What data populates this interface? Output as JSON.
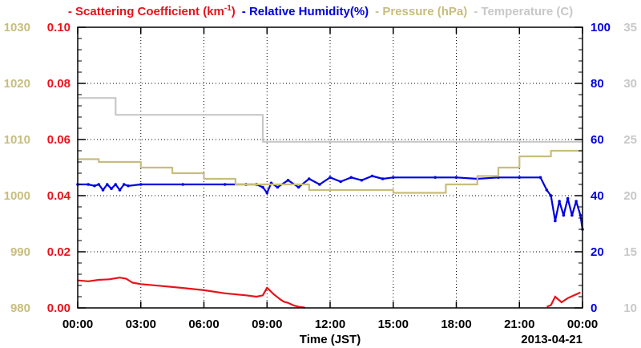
{
  "chart_data": {
    "type": "line",
    "xlabel": "Time (JST)",
    "xlim": [
      0,
      24
    ],
    "x_ticks": [
      "00:00",
      "03:00",
      "06:00",
      "09:00",
      "12:00",
      "15:00",
      "18:00",
      "21:00",
      "00:00"
    ],
    "x_tick_values": [
      0,
      3,
      6,
      9,
      12,
      15,
      18,
      21,
      24
    ],
    "date_label": "2013-04-21",
    "grid": true,
    "axes": {
      "pressure": {
        "side": "left-outer",
        "ylim": [
          980,
          1030
        ],
        "ticks": [
          "980",
          "990",
          "1000",
          "1010",
          "1020",
          "1030"
        ],
        "color": "#c8bd7e"
      },
      "scattering": {
        "side": "left-inner",
        "ylim": [
          0,
          0.1
        ],
        "ticks": [
          "0.00",
          "0.02",
          "0.04",
          "0.06",
          "0.08",
          "0.10"
        ],
        "color": "#e8121a"
      },
      "humidity": {
        "side": "right-inner",
        "ylim": [
          0,
          100
        ],
        "ticks": [
          "0",
          "20",
          "40",
          "60",
          "80",
          "100"
        ],
        "color": "#0000e0"
      },
      "temperature": {
        "side": "right-outer",
        "ylim": [
          10,
          35
        ],
        "ticks": [
          "10",
          "15",
          "20",
          "25",
          "30",
          "35"
        ],
        "color": "#c8c8c8"
      }
    },
    "series": [
      {
        "name": "Scattering Coefficient (km",
        "name_sup": "-1",
        "name_suffix": ")",
        "axis": "scattering",
        "color": "#e8121a",
        "x": [
          0,
          0.5,
          1.0,
          1.5,
          2.0,
          2.3,
          2.6,
          3.0,
          4.0,
          5.0,
          6.0,
          7.0,
          8.0,
          8.5,
          8.8,
          9.0,
          9.3,
          9.6,
          9.8,
          10.0,
          10.3,
          10.5,
          10.8
        ],
        "y": [
          0.0098,
          0.0095,
          0.01,
          0.0102,
          0.0108,
          0.0104,
          0.009,
          0.0085,
          0.0078,
          0.0071,
          0.0063,
          0.0052,
          0.0045,
          0.004,
          0.0045,
          0.0072,
          0.005,
          0.0032,
          0.0022,
          0.0018,
          0.0008,
          0.0004,
          0.0001
        ],
        "x2": [
          22.3,
          22.5,
          22.7,
          23.0,
          23.3,
          23.6,
          23.9
        ],
        "y2": [
          0.0004,
          0.001,
          0.004,
          0.002,
          0.0035,
          0.0045,
          0.0055
        ]
      },
      {
        "name": "Relative Humidity(%)",
        "axis": "humidity",
        "color": "#0000e0",
        "x": [
          0,
          0.5,
          0.8,
          1.0,
          1.2,
          1.4,
          1.6,
          1.8,
          2.0,
          2.2,
          2.4,
          3.0,
          5.0,
          7.0,
          8.0,
          8.5,
          8.8,
          9.0,
          9.2,
          9.5,
          10.0,
          10.5,
          11.0,
          11.5,
          12.0,
          12.5,
          13.0,
          13.5,
          14.0,
          14.5,
          15.0,
          17.0,
          18.0,
          19.0,
          20.0,
          21.0,
          22.0,
          22.3,
          22.5,
          22.7,
          22.9,
          23.1,
          23.3,
          23.5,
          23.7,
          23.9,
          24.0
        ],
        "y": [
          44,
          44,
          43.5,
          44,
          42,
          44,
          42.5,
          44,
          42,
          44,
          43.5,
          44,
          44,
          44,
          44,
          44,
          43,
          41,
          44.5,
          43,
          45.5,
          43,
          46,
          44,
          46.5,
          45,
          46.5,
          45.5,
          47,
          46,
          46.5,
          46.5,
          46.5,
          46,
          46.5,
          46.5,
          46.5,
          42,
          40,
          31,
          38,
          33,
          39,
          33,
          38,
          33,
          28
        ]
      },
      {
        "name": "Pressure (hPa)",
        "axis": "pressure",
        "color": "#c8bd7e",
        "x": [
          0,
          1.0,
          1.0,
          3.0,
          3.0,
          4.5,
          4.5,
          6.0,
          6.0,
          7.5,
          7.5,
          11.0,
          11.0,
          15.0,
          15.0,
          17.5,
          17.5,
          19.0,
          19.0,
          20.0,
          20.0,
          21.0,
          21.0,
          22.5,
          22.5,
          24.0
        ],
        "y": [
          1006.5,
          1006.5,
          1006,
          1006,
          1005,
          1005,
          1004,
          1004,
          1003,
          1003,
          1002,
          1002,
          1001,
          1001,
          1000.5,
          1000.5,
          1002,
          1002,
          1003.5,
          1003.5,
          1005,
          1005,
          1007,
          1007,
          1008,
          1008
        ]
      },
      {
        "name": "Temperature (C)",
        "axis": "temperature",
        "color": "#c8c8c8",
        "x": [
          0,
          1.8,
          1.8,
          8.8,
          8.8,
          24.0
        ],
        "y": [
          28.7,
          28.7,
          27.2,
          27.2,
          24.8,
          24.8
        ]
      }
    ]
  }
}
